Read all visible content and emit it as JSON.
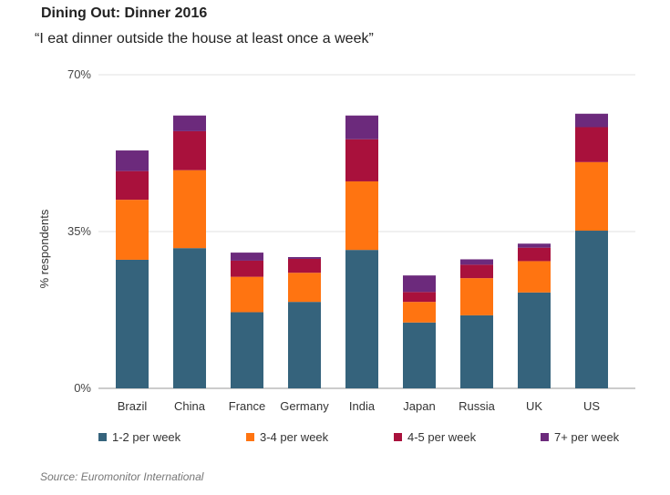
{
  "chart_data": {
    "type": "bar",
    "stacked": true,
    "title": "Dining Out: Dinner 2016",
    "subtitle": "“I eat dinner outside the house at least once a week”",
    "xlabel": "",
    "ylabel": "% respondents",
    "ylim": [
      0,
      70
    ],
    "yticks": [
      {
        "value": 0,
        "label": "0%"
      },
      {
        "value": 35,
        "label": "35%"
      },
      {
        "value": 70,
        "label": "70%"
      }
    ],
    "grid": true,
    "legend_position": "bottom",
    "categories": [
      "Brazil",
      "China",
      "France",
      "Germany",
      "India",
      "Japan",
      "Russia",
      "UK",
      "US"
    ],
    "series": [
      {
        "name": "1-2 per week",
        "color": "#35637c",
        "values": [
          28.7,
          31.3,
          17.0,
          19.3,
          30.9,
          14.7,
          16.3,
          21.4,
          35.2
        ]
      },
      {
        "name": "3-4 per week",
        "color": "#ff7411",
        "values": [
          13.4,
          17.4,
          7.9,
          6.5,
          15.3,
          4.6,
          8.3,
          7.0,
          15.3
        ]
      },
      {
        "name": "4-5 per week",
        "color": "#a9113c",
        "values": [
          6.4,
          8.7,
          3.6,
          3.1,
          9.4,
          2.2,
          3.0,
          3.0,
          7.8
        ]
      },
      {
        "name": "7+ per week",
        "color": "#6c2a7c",
        "values": [
          4.6,
          3.5,
          1.8,
          0.4,
          5.3,
          3.7,
          1.2,
          0.9,
          3.0
        ]
      }
    ],
    "source": "Source: Euromonitor International"
  }
}
